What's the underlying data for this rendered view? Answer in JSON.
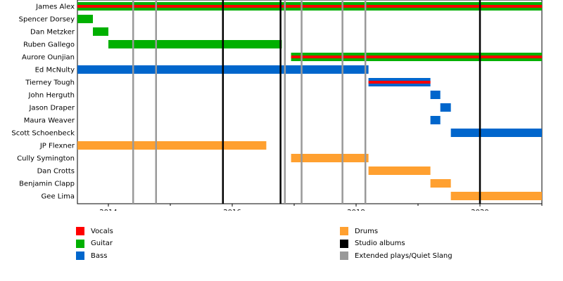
{
  "chart_data": {
    "type": "timeline",
    "title": "",
    "x_range": [
      2013.5,
      2021.0
    ],
    "x_ticks": [
      2014,
      2016,
      2018,
      2020
    ],
    "members": [
      "James Alex",
      "Spencer Dorsey",
      "Dan Metzker",
      "Ruben Gallego",
      "Aurore Ounjian",
      "Ed McNulty",
      "Tierney Tough",
      "John Herguth",
      "Jason Draper",
      "Maura Weaver",
      "Scott Schoenbeck",
      "JP Flexner",
      "Cully Symington",
      "Dan Crotts",
      "Benjamin Clapp",
      "Gee Lima"
    ],
    "roles": {
      "vocals": {
        "label": "Vocals",
        "color": "#ff0000"
      },
      "guitar": {
        "label": "Guitar",
        "color": "#00b000"
      },
      "bass": {
        "label": "Bass",
        "color": "#0066cc"
      },
      "drums": {
        "label": "Drums",
        "color": "#ffa030"
      }
    },
    "tenures": [
      {
        "member": "James Alex",
        "primary": "guitar",
        "secondary": "vocals",
        "start": 2013.5,
        "end": 2021.0
      },
      {
        "member": "Spencer Dorsey",
        "primary": "guitar",
        "start": 2013.5,
        "end": 2013.75
      },
      {
        "member": "Dan Metzker",
        "primary": "guitar",
        "start": 2013.75,
        "end": 2014.0
      },
      {
        "member": "Ruben Gallego",
        "primary": "guitar",
        "start": 2014.0,
        "end": 2016.8
      },
      {
        "member": "Aurore Ounjian",
        "primary": "guitar",
        "secondary": "vocals",
        "start": 2016.95,
        "end": 2021.0
      },
      {
        "member": "Ed McNulty",
        "primary": "bass",
        "start": 2013.5,
        "end": 2018.2
      },
      {
        "member": "Tierney Tough",
        "primary": "bass",
        "secondary": "vocals",
        "start": 2018.2,
        "end": 2019.2
      },
      {
        "member": "John Herguth",
        "primary": "bass",
        "start": 2019.2,
        "end": 2019.36
      },
      {
        "member": "Jason Draper",
        "primary": "bass",
        "start": 2019.36,
        "end": 2019.53
      },
      {
        "member": "Maura Weaver",
        "primary": "bass",
        "start": 2019.2,
        "end": 2019.36
      },
      {
        "member": "Scott Schoenbeck",
        "primary": "bass",
        "start": 2019.53,
        "end": 2021.0
      },
      {
        "member": "JP Flexner",
        "primary": "drums",
        "start": 2013.5,
        "end": 2016.55
      },
      {
        "member": "Cully Symington",
        "primary": "drums",
        "start": 2016.95,
        "end": 2018.2
      },
      {
        "member": "Dan Crotts",
        "primary": "drums",
        "start": 2018.2,
        "end": 2019.2
      },
      {
        "member": "Benjamin Clapp",
        "primary": "drums",
        "start": 2019.2,
        "end": 2019.53
      },
      {
        "member": "Gee Lima",
        "primary": "drums",
        "start": 2019.53,
        "end": 2021.0
      }
    ],
    "studio_albums": [
      2015.85,
      2016.78
    ],
    "extended_plays": [
      2014.4,
      2014.77,
      2016.85,
      2017.12,
      2017.78,
      2018.15
    ],
    "year_markers": [
      2020.0
    ],
    "event_colors": {
      "studio_albums": "#000000",
      "extended_plays": "#999999"
    },
    "legend": [
      {
        "label": "Vocals",
        "color": "#ff0000"
      },
      {
        "label": "Guitar",
        "color": "#00b000"
      },
      {
        "label": "Bass",
        "color": "#0066cc"
      },
      {
        "label": "Drums",
        "color": "#ffa030"
      },
      {
        "label": "Studio albums",
        "color": "#000000"
      },
      {
        "label": "Extended plays/Quiet Slang",
        "color": "#999999"
      }
    ]
  }
}
